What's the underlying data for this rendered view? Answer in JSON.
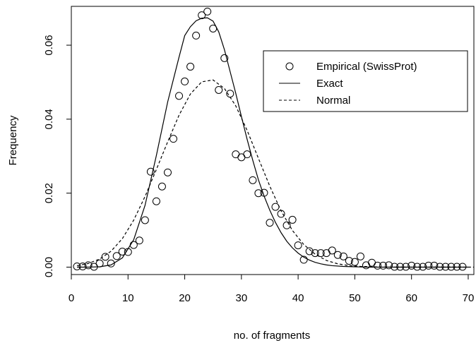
{
  "chart_data": {
    "type": "line",
    "xlabel": "no. of fragments",
    "ylabel": "Frequency",
    "xlim": [
      0,
      71
    ],
    "ylim": [
      -0.002,
      0.0705
    ],
    "x_ticks": [
      0,
      10,
      20,
      30,
      40,
      50,
      60,
      70
    ],
    "y_ticks": [
      0.0,
      0.02,
      0.04,
      0.06
    ],
    "y_tick_labels": [
      "0.00",
      "0.02",
      "0.04",
      "0.06"
    ],
    "x_tick_labels": [
      "0",
      "10",
      "20",
      "30",
      "40",
      "50",
      "60",
      "70"
    ],
    "grid": false,
    "legend_position": "top-right",
    "series": [
      {
        "name": "Empirical (SwissProt)",
        "style": "points",
        "x": [
          1,
          2,
          3,
          4,
          5,
          6,
          7,
          8,
          9,
          10,
          11,
          12,
          13,
          14,
          15,
          16,
          17,
          18,
          19,
          20,
          21,
          22,
          23,
          24,
          25,
          26,
          27,
          28,
          29,
          30,
          31,
          32,
          33,
          34,
          35,
          36,
          37,
          38,
          39,
          40,
          41,
          42,
          43,
          44,
          45,
          46,
          47,
          48,
          49,
          50,
          51,
          52,
          53,
          54,
          55,
          56,
          57,
          58,
          59,
          60,
          61,
          62,
          63,
          64,
          65,
          66,
          67,
          68,
          69
        ],
        "y": [
          0.0002,
          0.0002,
          0.0005,
          0.0001,
          0.001,
          0.0028,
          0.001,
          0.003,
          0.0042,
          0.0041,
          0.006,
          0.0072,
          0.0127,
          0.0258,
          0.0178,
          0.0218,
          0.0256,
          0.0347,
          0.0463,
          0.0502,
          0.0542,
          0.0626,
          0.0681,
          0.0691,
          0.0645,
          0.0479,
          0.0565,
          0.0469,
          0.0305,
          0.0297,
          0.0305,
          0.0235,
          0.02,
          0.0201,
          0.012,
          0.0163,
          0.0144,
          0.0113,
          0.0128,
          0.0059,
          0.002,
          0.0043,
          0.0038,
          0.0038,
          0.0038,
          0.0045,
          0.0033,
          0.0029,
          0.0017,
          0.0014,
          0.0029,
          0.0005,
          0.0012,
          0.0004,
          0.0004,
          0.0005,
          0.0001,
          0.0001,
          0.0001,
          0.0004,
          0.0001,
          0.0001,
          0.0004,
          0.0004,
          0.0001,
          0.0001,
          0.0001,
          0.0001,
          0.0001
        ]
      },
      {
        "name": "Exact",
        "style": "solid",
        "x": [
          1,
          3,
          5,
          7,
          9,
          11,
          13,
          15,
          17,
          19,
          20,
          21,
          22,
          23,
          24,
          25,
          26,
          27,
          28,
          29,
          30,
          31,
          32,
          33,
          34,
          35,
          36,
          37,
          38,
          39,
          40,
          41,
          42,
          43,
          44,
          45,
          46,
          48,
          50,
          52,
          54,
          56,
          58,
          60,
          62,
          64,
          66,
          68,
          70
        ],
        "y": [
          0.0,
          0.0,
          0.0001,
          0.0006,
          0.0025,
          0.0074,
          0.0167,
          0.0302,
          0.0447,
          0.0568,
          0.0626,
          0.065,
          0.0666,
          0.0673,
          0.0674,
          0.0665,
          0.0636,
          0.0588,
          0.0529,
          0.047,
          0.0407,
          0.0346,
          0.0289,
          0.0236,
          0.0192,
          0.0154,
          0.0121,
          0.0093,
          0.007,
          0.0052,
          0.0038,
          0.0027,
          0.0019,
          0.0013,
          0.0009,
          0.0006,
          0.0004,
          0.0002,
          0.0001,
          0.0,
          0.0,
          0.0,
          0.0,
          0.0,
          0.0,
          0.0,
          0.0,
          0.0,
          0.0
        ]
      },
      {
        "name": "Normal",
        "style": "dashed",
        "x": [
          1,
          3,
          5,
          7,
          9,
          11,
          13,
          15,
          17,
          19,
          21,
          23,
          25,
          27,
          29,
          31,
          33,
          35,
          37,
          39,
          41,
          43,
          45,
          47,
          49,
          51,
          53,
          55,
          57,
          59,
          61,
          63,
          65,
          67,
          69,
          71
        ],
        "y": [
          0.0004,
          0.001,
          0.0022,
          0.0043,
          0.0077,
          0.0127,
          0.0191,
          0.0264,
          0.0339,
          0.0411,
          0.0468,
          0.0501,
          0.0506,
          0.0483,
          0.0436,
          0.037,
          0.0294,
          0.0219,
          0.0152,
          0.0099,
          0.0061,
          0.0035,
          0.0018,
          0.0009,
          0.0004,
          0.0002,
          0.0001,
          0.0,
          0.0,
          0.0,
          0.0,
          0.0,
          0.0,
          0.0,
          0.0,
          0.0
        ]
      }
    ]
  }
}
